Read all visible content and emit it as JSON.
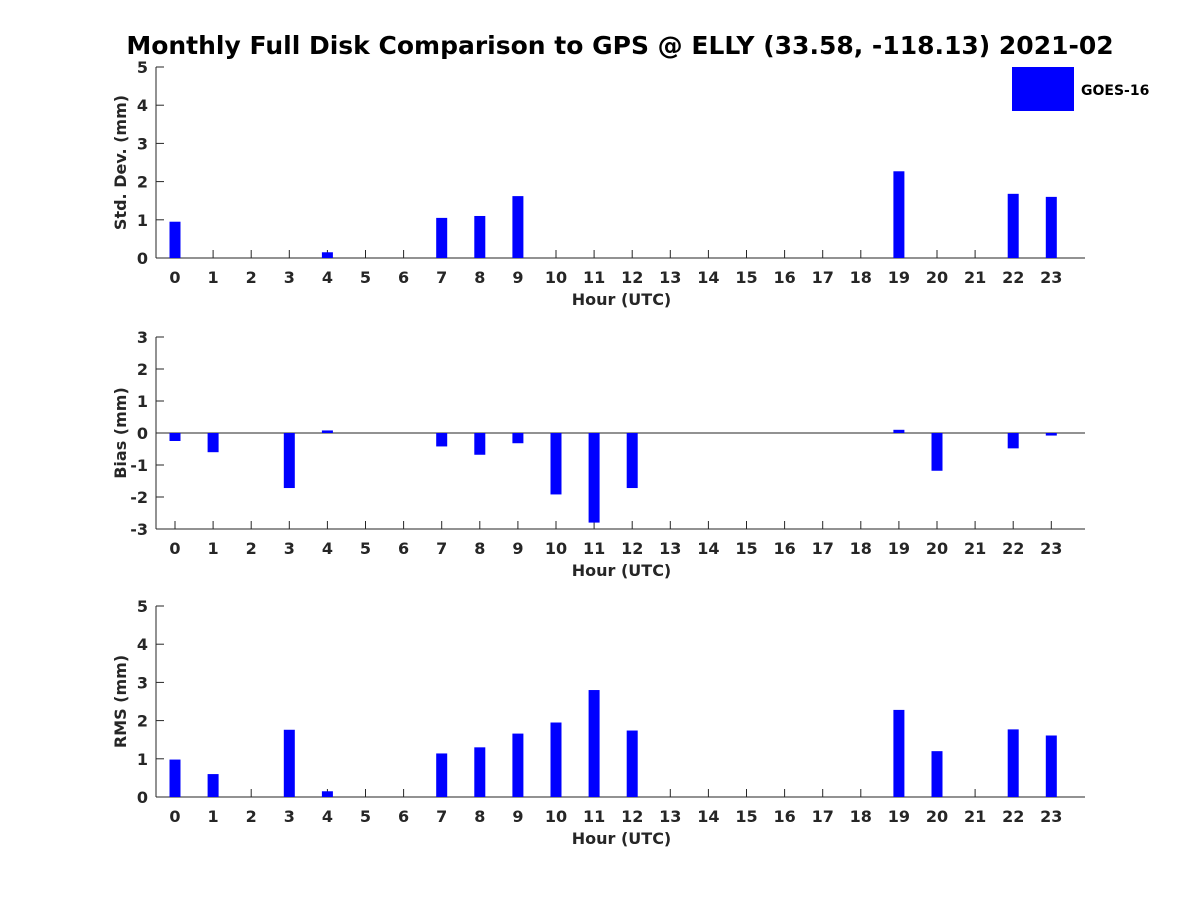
{
  "title": "Monthly Full Disk Comparison to GPS @ ELLY (33.58, -118.13) 2021-02",
  "legend": {
    "label": "GOES-16",
    "color": "#0000ff"
  },
  "chart_data": [
    {
      "type": "bar",
      "title": "Monthly Full Disk Comparison to GPS @ ELLY (33.58, -118.13) 2021-02",
      "xlabel": "Hour (UTC)",
      "ylabel": "Std. Dev. (mm)",
      "ylim": [
        0,
        5
      ],
      "yticks": [
        0,
        1,
        2,
        3,
        4,
        5
      ],
      "categories": [
        "0",
        "1",
        "2",
        "3",
        "4",
        "5",
        "6",
        "7",
        "8",
        "9",
        "10",
        "11",
        "12",
        "13",
        "14",
        "15",
        "16",
        "17",
        "18",
        "19",
        "20",
        "21",
        "22",
        "23"
      ],
      "series": [
        {
          "name": "GOES-16",
          "color": "#0000ff",
          "values": [
            0.95,
            null,
            null,
            null,
            0.15,
            null,
            null,
            1.05,
            1.1,
            1.62,
            null,
            null,
            null,
            null,
            null,
            null,
            null,
            null,
            null,
            2.27,
            null,
            null,
            1.68,
            1.6
          ]
        }
      ]
    },
    {
      "type": "bar",
      "xlabel": "Hour (UTC)",
      "ylabel": "Bias (mm)",
      "ylim": [
        -3,
        3
      ],
      "yticks": [
        -3,
        -2,
        -1,
        0,
        1,
        2,
        3
      ],
      "categories": [
        "0",
        "1",
        "2",
        "3",
        "4",
        "5",
        "6",
        "7",
        "8",
        "9",
        "10",
        "11",
        "12",
        "13",
        "14",
        "15",
        "16",
        "17",
        "18",
        "19",
        "20",
        "21",
        "22",
        "23"
      ],
      "series": [
        {
          "name": "GOES-16",
          "color": "#0000ff",
          "values": [
            -0.25,
            -0.6,
            null,
            -1.72,
            0.08,
            null,
            null,
            -0.42,
            -0.68,
            -0.32,
            -1.92,
            -2.8,
            -1.72,
            null,
            null,
            null,
            null,
            null,
            null,
            0.1,
            -1.18,
            null,
            -0.48,
            -0.08
          ]
        }
      ]
    },
    {
      "type": "bar",
      "xlabel": "Hour (UTC)",
      "ylabel": "RMS (mm)",
      "ylim": [
        0,
        5
      ],
      "yticks": [
        0,
        1,
        2,
        3,
        4,
        5
      ],
      "categories": [
        "0",
        "1",
        "2",
        "3",
        "4",
        "5",
        "6",
        "7",
        "8",
        "9",
        "10",
        "11",
        "12",
        "13",
        "14",
        "15",
        "16",
        "17",
        "18",
        "19",
        "20",
        "21",
        "22",
        "23"
      ],
      "series": [
        {
          "name": "GOES-16",
          "color": "#0000ff",
          "values": [
            0.98,
            0.6,
            null,
            1.76,
            0.15,
            null,
            null,
            1.14,
            1.3,
            1.66,
            1.95,
            2.8,
            1.74,
            null,
            null,
            null,
            null,
            null,
            null,
            2.28,
            1.2,
            null,
            1.77,
            1.61
          ]
        }
      ]
    }
  ]
}
